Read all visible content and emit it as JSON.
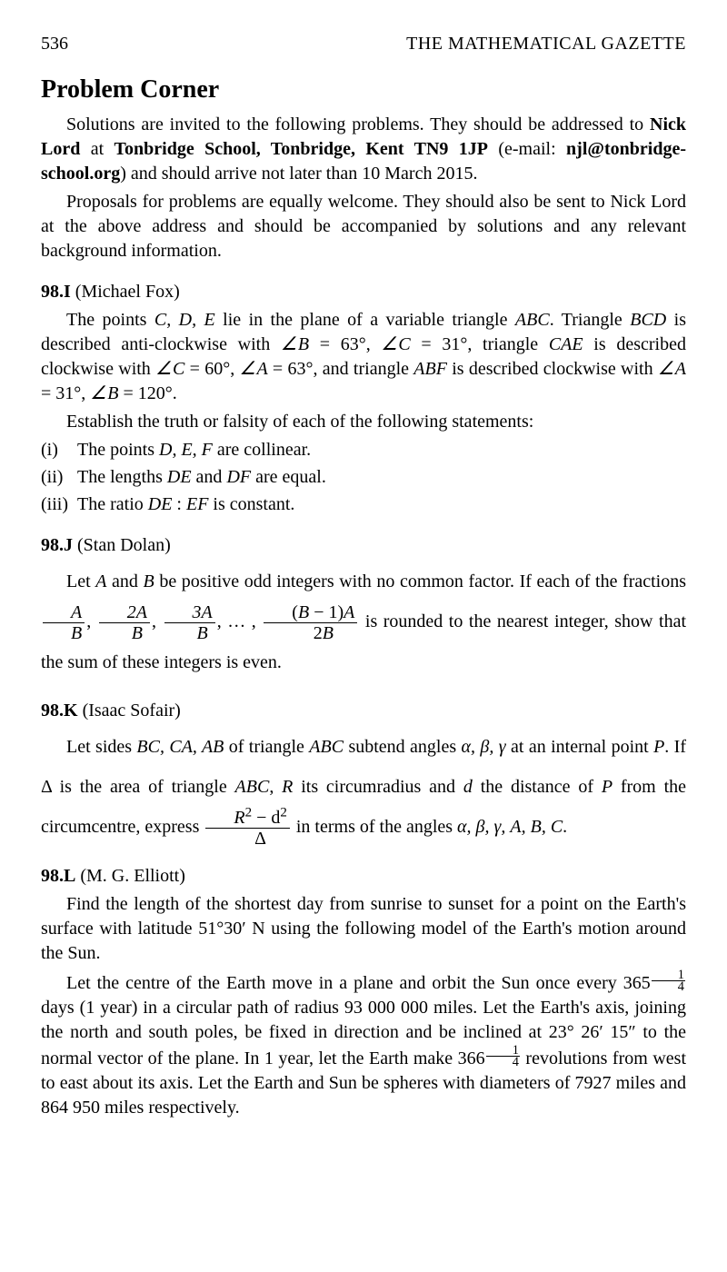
{
  "header": {
    "page_number": "536",
    "journal": "THE MATHEMATICAL GAZETTE"
  },
  "title": "Problem Corner",
  "intro": {
    "p1_a": "Solutions are invited to the following problems.  They should be addressed to ",
    "p1_b": "Nick Lord",
    "p1_c": " at ",
    "p1_d": "Tonbridge School, Tonbridge, Kent TN9 1JP",
    "p1_e": " (e-mail: ",
    "p1_f": "njl@tonbridge-school.org",
    "p1_g": ") and should arrive not later than 10 March 2015.",
    "p2": "Proposals for problems are equally welcome.  They should also be sent to Nick Lord at the above address and should be accompanied by solutions and any relevant background information."
  },
  "problems": {
    "p98I": {
      "label": "98.I",
      "author": " (Michael Fox)",
      "t1": "The points ",
      "t2": " lie in the plane of a variable triangle ",
      "t3": ".  Triangle ",
      "t4": " is described anti-clockwise with ",
      "t5": "  =  63°, ",
      "t6": "  =  31°, triangle ",
      "t7": " is described clockwise with ",
      "t8": "  =  60°, ",
      "t9": "  =  63°, and triangle ",
      "t10": " is described clockwise with ",
      "t11": "  =  31°, ",
      "t12": "  =  120°.",
      "establish": "Establish the truth or falsity of each of the following statements:",
      "i_label": "(i)",
      "i_a": "The points ",
      "i_b": " are collinear.",
      "ii_label": "(ii)",
      "ii_a": "The lengths ",
      "ii_b": " and ",
      "ii_c": " are equal.",
      "iii_label": "(iii)",
      "iii_a": "The ratio ",
      "iii_b": "  :  ",
      "iii_c": " is constant.",
      "C": "C",
      "D": "D",
      "E": "E",
      "F": "F",
      "ABC": "ABC",
      "BCD": "BCD",
      "CAE": "CAE",
      "ABF": "ABF",
      "B": "B",
      "A": "A",
      "DE": "DE",
      "DF": "DF",
      "EF": "EF",
      "CDE": "C, D, E",
      "DEF": "D, E, F"
    },
    "p98J": {
      "label": "98.J",
      "author": " (Stan Dolan)",
      "t1": "Let ",
      "t2": " and ",
      "t3": " be positive odd integers with no common factor.  If each of the fractions ",
      "t4": " is rounded to the nearest integer, show that the sum of these integers is even.",
      "A": "A",
      "B": "B",
      "dots": ", … , ",
      "comma": ", ",
      "frac1_num": "A",
      "frac1_den": "B",
      "frac2_num": "2A",
      "frac2_den": "B",
      "frac3_num": "3A",
      "frac3_den": "B",
      "frac4_num": "(B − 1)A",
      "frac4_den": "2B"
    },
    "p98K": {
      "label": "98.K",
      "author": " (Isaac Sofair)",
      "t1": "Let sides ",
      "t2": " of triangle ",
      "t3": " subtend angles ",
      "t4": " at an internal point ",
      "t5": ".  If Δ is the area of triangle ",
      "t6": ", ",
      "t7": " its circumradius and ",
      "t8": " the distance of ",
      "t9": " from the circumcentre, express ",
      "t10": " in terms of the angles ",
      "t11": ".",
      "BC_CA_AB": "BC, CA, AB",
      "ABC": "ABC",
      "alpha_beta_gamma": "α, β, γ",
      "P": "P",
      "R": "R",
      "d": "d",
      "frac_num_a": "R",
      "frac_num_b": "2",
      "frac_num_c": " − d",
      "frac_num_d": "2",
      "frac_den": "Δ",
      "angles_list": "α, β, γ, A, B, C"
    },
    "p98L": {
      "label": "98.L",
      "author": " (M. G. Elliott)",
      "p1": "Find the length of the shortest day from sunrise to sunset for a point on the Earth's surface with latitude 51°30′ N using the following model of the Earth's motion around the Sun.",
      "p2_a": "Let the centre of the Earth move in a plane and orbit the Sun once every 365",
      "p2_b": " days (1 year) in a circular path of radius 93 000 000 miles.  Let the Earth's axis, joining the north and south poles, be fixed in direction and be inclined at 23° 26′ 15″ to the normal vector of the plane.  In 1 year, let the Earth make 366",
      "p2_c": " revolutions from west to east about its axis.  Let the Earth and Sun be spheres with diameters of 7927 miles and 864 950 miles respectively.",
      "quarter_num": "1",
      "quarter_den": "4"
    }
  }
}
